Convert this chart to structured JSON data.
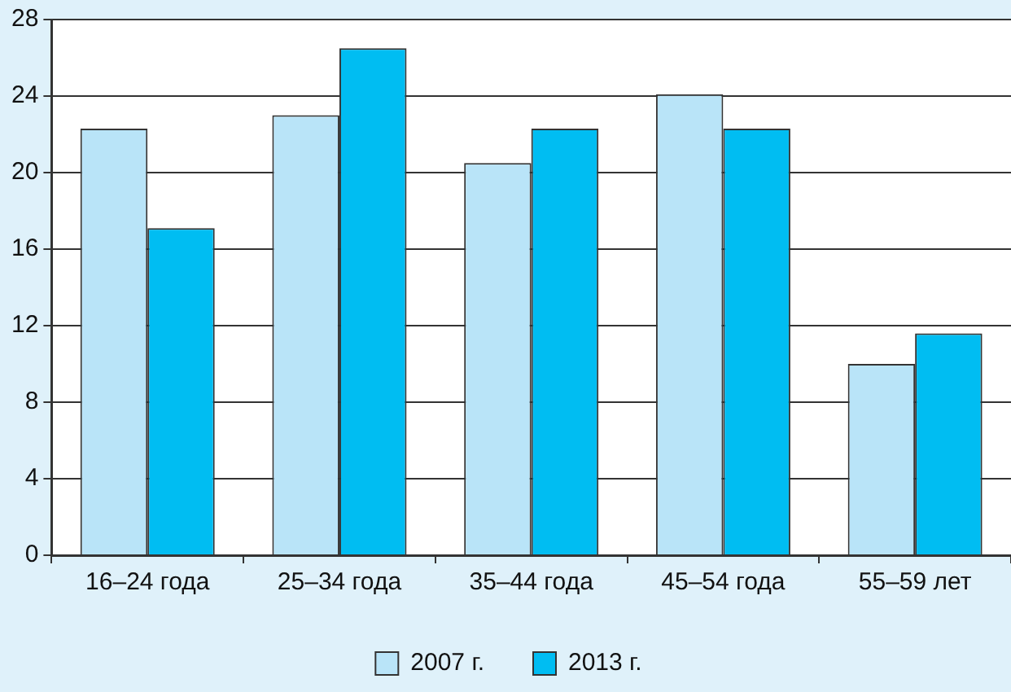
{
  "chart_data": {
    "type": "bar",
    "categories": [
      "16–24 года",
      "25–34 года",
      "35–44 года",
      "45–54 года",
      "55–59 лет"
    ],
    "series": [
      {
        "name": "2007 г.",
        "color": "#b9e4f8",
        "values": [
          22.3,
          23.0,
          20.5,
          24.1,
          10.0
        ]
      },
      {
        "name": "2013 г.",
        "color": "#00bdf2",
        "values": [
          17.1,
          26.5,
          22.3,
          22.3,
          11.6
        ]
      }
    ],
    "ylim": [
      0,
      28
    ],
    "yticks": [
      0,
      4,
      8,
      12,
      16,
      20,
      24,
      28
    ],
    "grid": "y",
    "legend": "bottom"
  }
}
